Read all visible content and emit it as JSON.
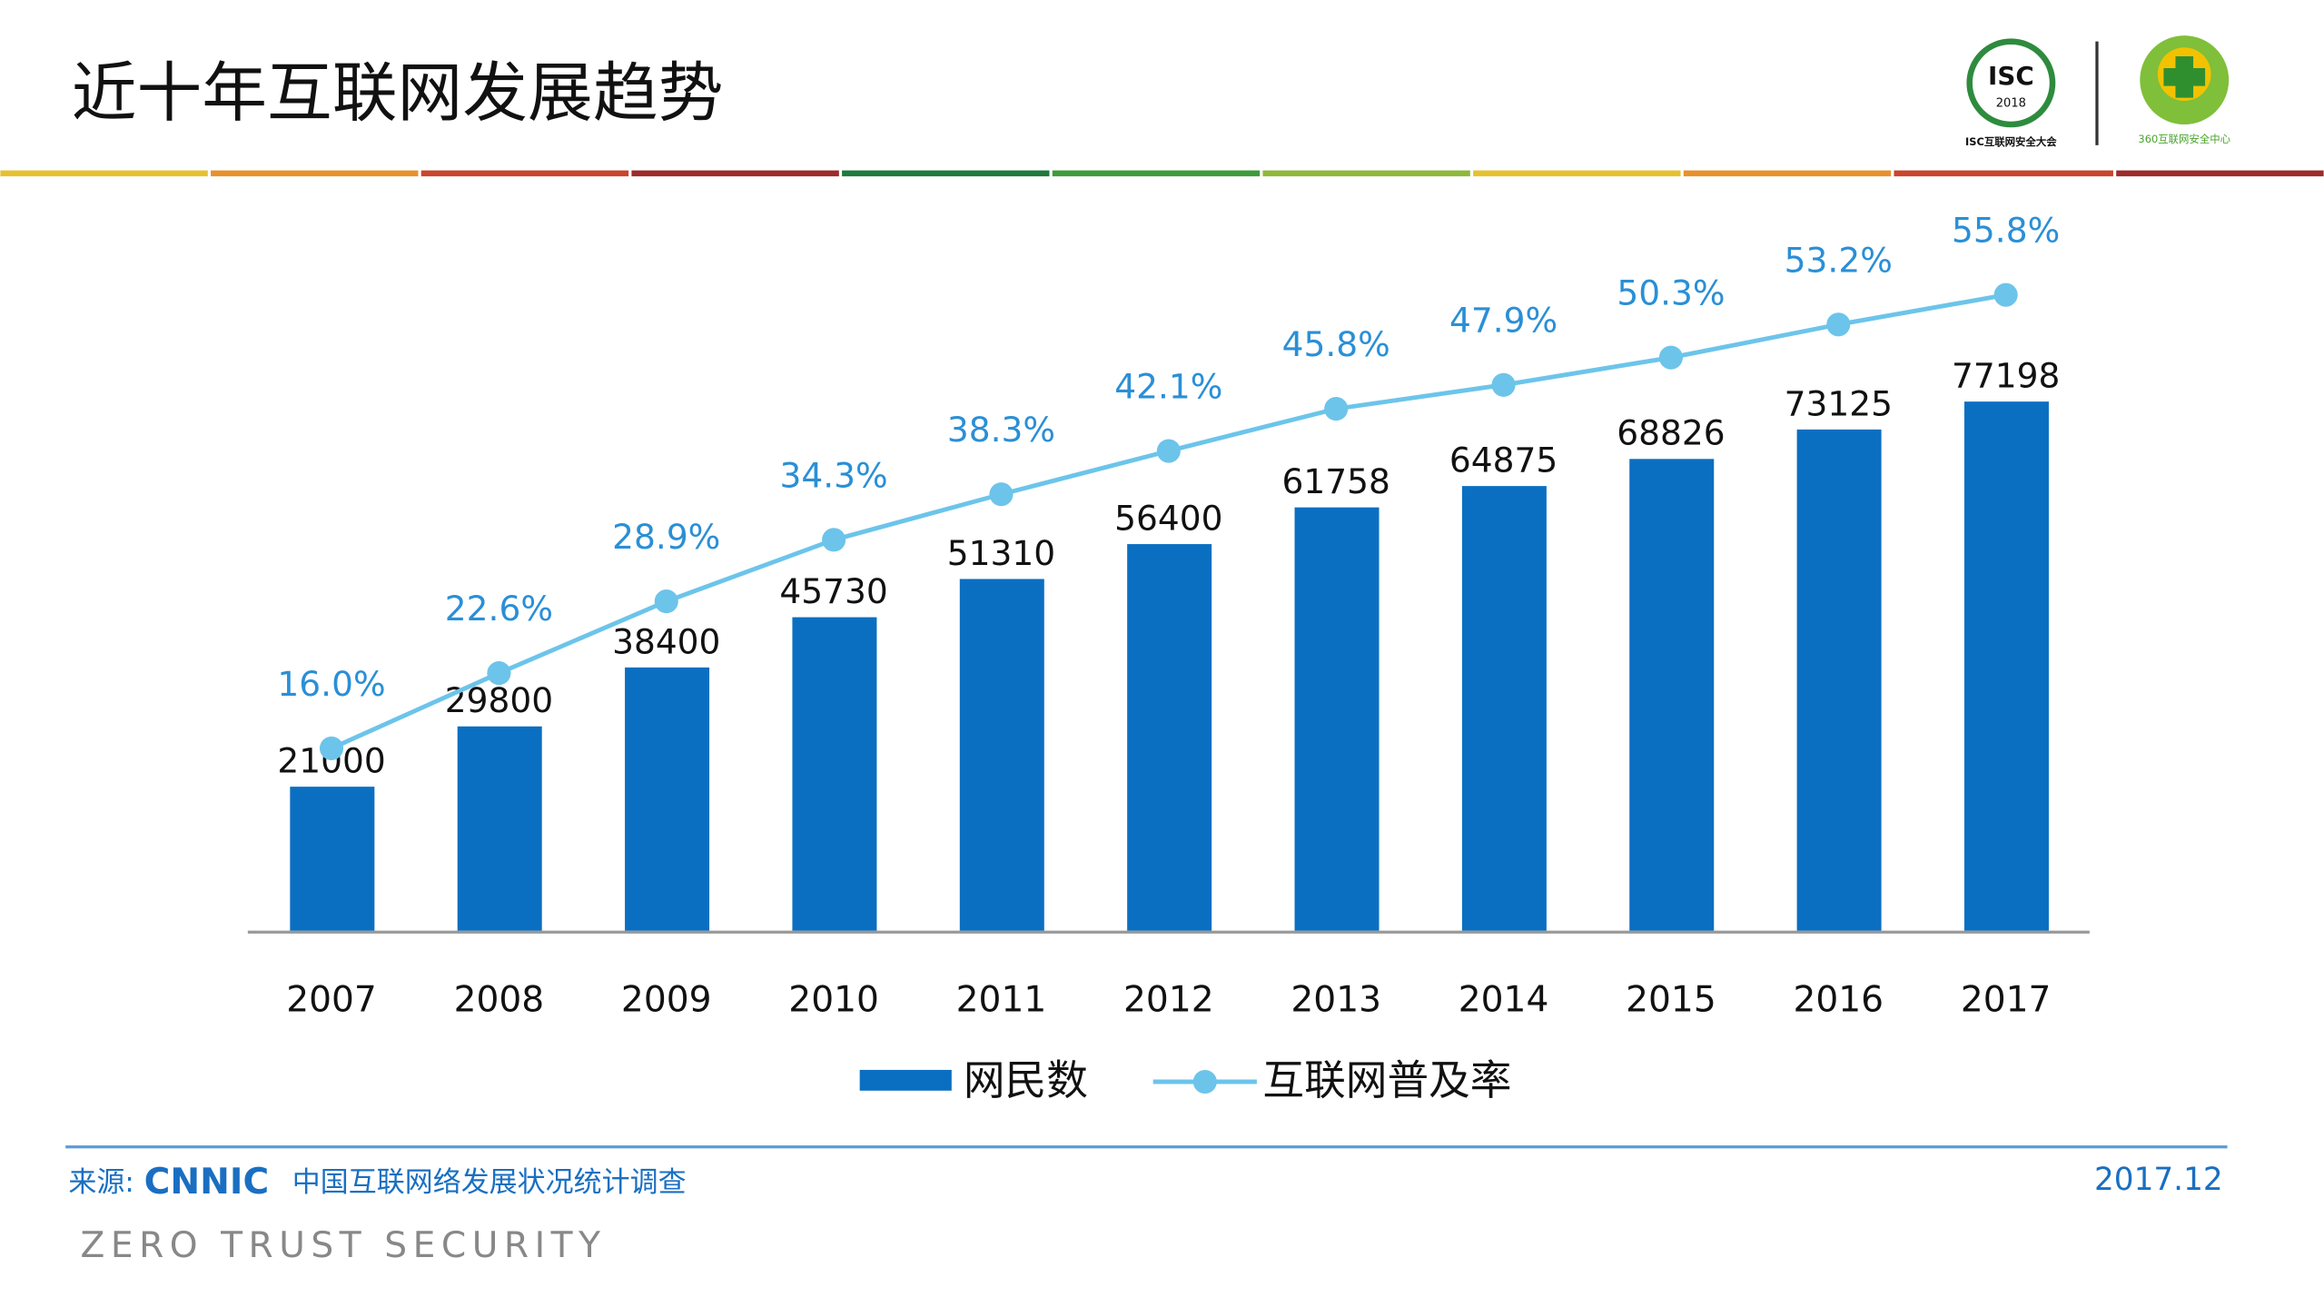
{
  "header": {
    "title": "近十年互联网发展趋势",
    "logo_isc": "ISC",
    "logo_isc_year": "2018",
    "logo_isc_caption": "ISC互联网安全大会",
    "logo_360_caption": "360互联网安全中心"
  },
  "chart_data": {
    "type": "bar-line",
    "categories": [
      "2007",
      "2008",
      "2009",
      "2010",
      "2011",
      "2012",
      "2013",
      "2014",
      "2015",
      "2016",
      "2017"
    ],
    "series": [
      {
        "name": "网民数",
        "type": "bar",
        "color": "#0b6fc1",
        "values": [
          21000,
          29800,
          38400,
          45730,
          51310,
          56400,
          61758,
          64875,
          68826,
          73125,
          77198
        ]
      },
      {
        "name": "互联网普及率",
        "type": "line",
        "color": "#6cc4ea",
        "values": [
          16.0,
          22.6,
          28.9,
          34.3,
          38.3,
          42.1,
          45.8,
          47.9,
          50.3,
          53.2,
          55.8
        ],
        "value_labels": [
          "16.0%",
          "22.6%",
          "28.9%",
          "34.3%",
          "38.3%",
          "42.1%",
          "45.8%",
          "47.9%",
          "50.3%",
          "53.2%",
          "55.8%"
        ]
      }
    ]
  },
  "footer": {
    "source_label": "来源:",
    "source_org": "CNNIC",
    "source_title": "中国互联网络发展状况统计调查",
    "date": "2017.12",
    "tagline": "ZERO TRUST SECURITY"
  }
}
